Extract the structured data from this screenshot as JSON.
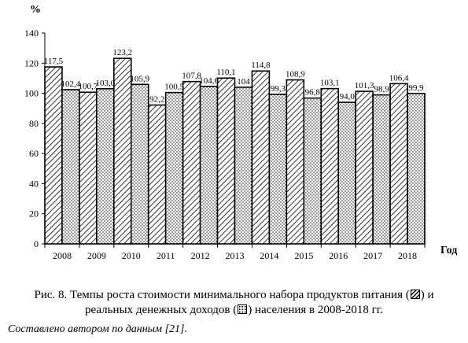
{
  "chart_data": {
    "type": "bar",
    "ylabel": "%",
    "xlabel": "Год",
    "ylim": [
      0,
      140
    ],
    "ytick_step": 20,
    "grid": false,
    "categories": [
      "2008",
      "2009",
      "2010",
      "2011",
      "2012",
      "2013",
      "2014",
      "2015",
      "2016",
      "2017",
      "2018"
    ],
    "series": [
      {
        "pattern": "hatch",
        "values": [
          117.5,
          100.7,
          123.2,
          92.2,
          107.8,
          110.1,
          114.8,
          108.9,
          103.1,
          101.3,
          106.4
        ],
        "labels": [
          "117,5",
          "100,7",
          "123,2",
          "92,2",
          "107,8",
          "110,1",
          "114,8",
          "108,9",
          "103,1",
          "101,3",
          "106,4"
        ]
      },
      {
        "pattern": "dots",
        "values": [
          102.4,
          103.0,
          105.9,
          100.5,
          104.6,
          104.0,
          99.3,
          96.8,
          94.0,
          98.9,
          99.9
        ],
        "labels": [
          "102,4",
          "103,0",
          "105,9",
          "100,5",
          "104,6",
          "104",
          "99,3",
          "96,8",
          "94,0",
          "98,9",
          "99,9"
        ]
      }
    ]
  },
  "caption": {
    "line1_text": "Рис. 8. Темпы роста стоимости минимального набора продуктов питания (",
    "line1_end": ") и",
    "line2_text": "реальных денежных доходов (",
    "line2_end": ") населения в 2008-2018 гг."
  },
  "source": "Составлено автором по данным [21]."
}
